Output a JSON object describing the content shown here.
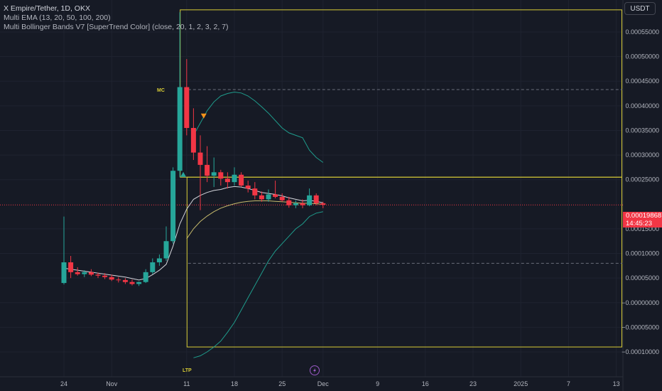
{
  "header": {
    "symbol_line": "X Empire/Tether, 1D, OKX",
    "indicator_ema": "Multi EMA (13, 20, 50, 100, 200)",
    "indicator_bb": "Multi Bollinger Bands V7 [SuperTrend Color] (close, 20, 1, 2, 3, 2, 7)"
  },
  "currency_button": "USDT",
  "price_label": {
    "value": "0.00019868",
    "countdown": "14:45:23"
  },
  "annotations": {
    "mc_label": "MC",
    "ltp_label": "LTP"
  },
  "colors": {
    "background": "#161a25",
    "grid": "#1f2330",
    "up": "#26a69a",
    "down": "#f23645",
    "box": "#d8cc36",
    "ema_fast": "#d5d6dc",
    "ema_slow": "#c6ba6c",
    "band": "#1f9c8c",
    "lightning": "#9b59c6"
  },
  "chart_data": {
    "type": "candlestick",
    "title": "X Empire/Tether, 1D, OKX",
    "ylim": [
      -0.00011,
      0.000595
    ],
    "y_ticks": [
      {
        "value": 0.00055,
        "label": "0.00055000"
      },
      {
        "value": 0.0005,
        "label": "0.00050000"
      },
      {
        "value": 0.00045,
        "label": "0.00045000"
      },
      {
        "value": 0.0004,
        "label": "0.00040000"
      },
      {
        "value": 0.00035,
        "label": "0.00035000"
      },
      {
        "value": 0.0003,
        "label": "0.00030000"
      },
      {
        "value": 0.00025,
        "label": "0.00025000"
      },
      {
        "value": 0.00015,
        "label": "0.00015000"
      },
      {
        "value": 0.0001,
        "label": "0.00010000"
      },
      {
        "value": 5e-05,
        "label": "0.00005000"
      },
      {
        "value": 0.0,
        "label": "−0.00000000"
      },
      {
        "value": -5e-05,
        "label": "−0.00005000"
      },
      {
        "value": -0.0001,
        "label": "−0.00010000"
      }
    ],
    "x_ticks": [
      {
        "day": 0,
        "label": "24"
      },
      {
        "day": 7,
        "label": "Nov"
      },
      {
        "day": 18,
        "label": "11"
      },
      {
        "day": 25,
        "label": "18"
      },
      {
        "day": 32,
        "label": "25"
      },
      {
        "day": 38,
        "label": "Dec"
      },
      {
        "day": 46,
        "label": "9"
      },
      {
        "day": 53,
        "label": "16"
      },
      {
        "day": 60,
        "label": "23"
      },
      {
        "day": 67,
        "label": "2025"
      },
      {
        "day": 74,
        "label": "7"
      },
      {
        "day": 81,
        "label": "13"
      }
    ],
    "candles": [
      {
        "o": 4e-05,
        "h": 0.000175,
        "l": 3.7e-05,
        "c": 8.2e-05
      },
      {
        "o": 8.2e-05,
        "h": 9.5e-05,
        "l": 5e-05,
        "c": 6.2e-05
      },
      {
        "o": 6.2e-05,
        "h": 7.2e-05,
        "l": 5.5e-05,
        "c": 5.8e-05
      },
      {
        "o": 5.8e-05,
        "h": 6.6e-05,
        "l": 5.2e-05,
        "c": 6.2e-05
      },
      {
        "o": 6.2e-05,
        "h": 6.8e-05,
        "l": 5.4e-05,
        "c": 5.7e-05
      },
      {
        "o": 5.7e-05,
        "h": 6.1e-05,
        "l": 5e-05,
        "c": 5.5e-05
      },
      {
        "o": 5.5e-05,
        "h": 6e-05,
        "l": 4.8e-05,
        "c": 5.2e-05
      },
      {
        "o": 5.2e-05,
        "h": 5.7e-05,
        "l": 4.4e-05,
        "c": 4.7e-05
      },
      {
        "o": 4.7e-05,
        "h": 5.2e-05,
        "l": 4.1e-05,
        "c": 4.6e-05
      },
      {
        "o": 4.6e-05,
        "h": 5e-05,
        "l": 3.8e-05,
        "c": 4.2e-05
      },
      {
        "o": 4.2e-05,
        "h": 4.7e-05,
        "l": 3.5e-05,
        "c": 3.8e-05
      },
      {
        "o": 3.8e-05,
        "h": 4.3e-05,
        "l": 3.4e-05,
        "c": 4.2e-05
      },
      {
        "o": 4.2e-05,
        "h": 6.8e-05,
        "l": 4e-05,
        "c": 6.2e-05
      },
      {
        "o": 6.2e-05,
        "h": 9e-05,
        "l": 5.8e-05,
        "c": 8.2e-05
      },
      {
        "o": 8.2e-05,
        "h": 9.8e-05,
        "l": 7.5e-05,
        "c": 9e-05
      },
      {
        "o": 9e-05,
        "h": 0.000155,
        "l": 8.5e-05,
        "c": 0.000125
      },
      {
        "o": 0.000125,
        "h": 0.000275,
        "l": 0.00012,
        "c": 0.000268
      },
      {
        "o": 0.000268,
        "h": 0.00059,
        "l": 0.000255,
        "c": 0.000438
      },
      {
        "o": 0.000438,
        "h": 0.000495,
        "l": 0.00034,
        "c": 0.000355
      },
      {
        "o": 0.000355,
        "h": 0.000395,
        "l": 0.00029,
        "c": 0.000305
      },
      {
        "o": 0.000305,
        "h": 0.00034,
        "l": 0.000188,
        "c": 0.00028
      },
      {
        "o": 0.00028,
        "h": 0.000318,
        "l": 0.000245,
        "c": 0.000258
      },
      {
        "o": 0.000258,
        "h": 0.000295,
        "l": 0.000235,
        "c": 0.000265
      },
      {
        "o": 0.000265,
        "h": 0.00027,
        "l": 0.000238,
        "c": 0.000252
      },
      {
        "o": 0.000252,
        "h": 0.000265,
        "l": 0.000232,
        "c": 0.000245
      },
      {
        "o": 0.000245,
        "h": 0.000275,
        "l": 0.000238,
        "c": 0.00026
      },
      {
        "o": 0.00026,
        "h": 0.000265,
        "l": 0.000235,
        "c": 0.000238
      },
      {
        "o": 0.000238,
        "h": 0.000248,
        "l": 0.000224,
        "c": 0.000232
      },
      {
        "o": 0.000232,
        "h": 0.000245,
        "l": 0.00021,
        "c": 0.000218
      },
      {
        "o": 0.000218,
        "h": 0.000226,
        "l": 0.000205,
        "c": 0.00021
      },
      {
        "o": 0.00021,
        "h": 0.00023,
        "l": 0.000205,
        "c": 0.00022
      },
      {
        "o": 0.00022,
        "h": 0.000248,
        "l": 0.000212,
        "c": 0.000215
      },
      {
        "o": 0.000215,
        "h": 0.000222,
        "l": 0.000205,
        "c": 0.000208
      },
      {
        "o": 0.000208,
        "h": 0.000215,
        "l": 0.000193,
        "c": 0.000198
      },
      {
        "o": 0.000198,
        "h": 0.000208,
        "l": 0.000192,
        "c": 0.000202
      },
      {
        "o": 0.000202,
        "h": 0.00021,
        "l": 0.000192,
        "c": 0.000198
      },
      {
        "o": 0.000198,
        "h": 0.000232,
        "l": 0.000196,
        "c": 0.000218
      },
      {
        "o": 0.000218,
        "h": 0.000222,
        "l": 0.000198,
        "c": 0.000202
      },
      {
        "o": 0.000202,
        "h": 0.000205,
        "l": 0.000192,
        "c": 0.000199
      }
    ],
    "ema_fast": [
      [
        0,
        7e-05
      ],
      [
        3,
        6.4e-05
      ],
      [
        6,
        5.8e-05
      ],
      [
        9,
        5.2e-05
      ],
      [
        11,
        4.6e-05
      ],
      [
        12,
        4.9e-05
      ],
      [
        13,
        5.7e-05
      ],
      [
        14,
        6.6e-05
      ],
      [
        15,
        7.8e-05
      ],
      [
        16,
        0.000115
      ],
      [
        17,
        0.00016
      ],
      [
        18,
        0.00019
      ],
      [
        19,
        0.00021
      ],
      [
        20,
        0.000218
      ],
      [
        21,
        0.000224
      ],
      [
        22,
        0.000228
      ],
      [
        23,
        0.00023
      ],
      [
        24,
        0.000234
      ],
      [
        25,
        0.000236
      ],
      [
        26,
        0.000235
      ],
      [
        27,
        0.000232
      ],
      [
        28,
        0.000228
      ],
      [
        29,
        0.000224
      ],
      [
        30,
        0.000222
      ],
      [
        31,
        0.00022
      ],
      [
        32,
        0.000217
      ],
      [
        33,
        0.000213
      ],
      [
        34,
        0.00021
      ],
      [
        35,
        0.000207
      ],
      [
        36,
        0.000208
      ],
      [
        37,
        0.000206
      ],
      [
        38,
        0.000203
      ]
    ],
    "ema_slow": [
      [
        18,
        0.00013
      ],
      [
        19,
        0.00015
      ],
      [
        20,
        0.000165
      ],
      [
        21,
        0.000176
      ],
      [
        22,
        0.000185
      ],
      [
        23,
        0.000192
      ],
      [
        24,
        0.000197
      ],
      [
        25,
        0.000201
      ],
      [
        26,
        0.000204
      ],
      [
        27,
        0.000206
      ],
      [
        28,
        0.000207
      ],
      [
        29,
        0.000207
      ],
      [
        30,
        0.000207
      ],
      [
        31,
        0.000206
      ],
      [
        32,
        0.000205
      ],
      [
        33,
        0.000204
      ],
      [
        34,
        0.000203
      ],
      [
        35,
        0.000202
      ],
      [
        36,
        0.000202
      ],
      [
        37,
        0.000201
      ],
      [
        38,
        0.0002
      ]
    ],
    "band_upper": [
      [
        19,
        0.00034
      ],
      [
        20,
        0.000365
      ],
      [
        21,
        0.00039
      ],
      [
        22,
        0.000408
      ],
      [
        23,
        0.00042
      ],
      [
        24,
        0.000425
      ],
      [
        25,
        0.000428
      ],
      [
        26,
        0.000426
      ],
      [
        27,
        0.00042
      ],
      [
        28,
        0.00041
      ],
      [
        29,
        0.000398
      ],
      [
        30,
        0.000385
      ],
      [
        31,
        0.00037
      ],
      [
        32,
        0.000355
      ],
      [
        33,
        0.000345
      ],
      [
        34,
        0.00034
      ],
      [
        35,
        0.000335
      ],
      [
        36,
        0.00031
      ],
      [
        37,
        0.000295
      ],
      [
        38,
        0.000285
      ]
    ],
    "band_lower": [
      [
        19,
        -0.000112
      ],
      [
        20,
        -0.000108
      ],
      [
        21,
        -0.0001
      ],
      [
        22,
        -9e-05
      ],
      [
        23,
        -7.8e-05
      ],
      [
        24,
        -6e-05
      ],
      [
        25,
        -4e-05
      ],
      [
        26,
        -1.5e-05
      ],
      [
        27,
        1e-05
      ],
      [
        28,
        3.5e-05
      ],
      [
        29,
        6e-05
      ],
      [
        30,
        8.5e-05
      ],
      [
        31,
        0.000105
      ],
      [
        32,
        0.00012
      ],
      [
        33,
        0.000135
      ],
      [
        34,
        0.00015
      ],
      [
        35,
        0.00016
      ],
      [
        36,
        0.000175
      ],
      [
        37,
        0.000182
      ],
      [
        38,
        0.000185
      ]
    ],
    "box_upper": {
      "day_start": 17,
      "price_top": 0.000595,
      "price_bottom": 0.000255
    },
    "box_lower": {
      "day_start": 18,
      "price_top": 0.000255,
      "price_bottom": -9e-05
    },
    "dashed_levels": [
      0.000433,
      8e-05
    ],
    "current_price_level": 0.00019868,
    "triangle_up": {
      "day": 17.5,
      "price": 0.00026
    },
    "triangle_down": {
      "day": 20.5,
      "price": 0.00038
    }
  }
}
